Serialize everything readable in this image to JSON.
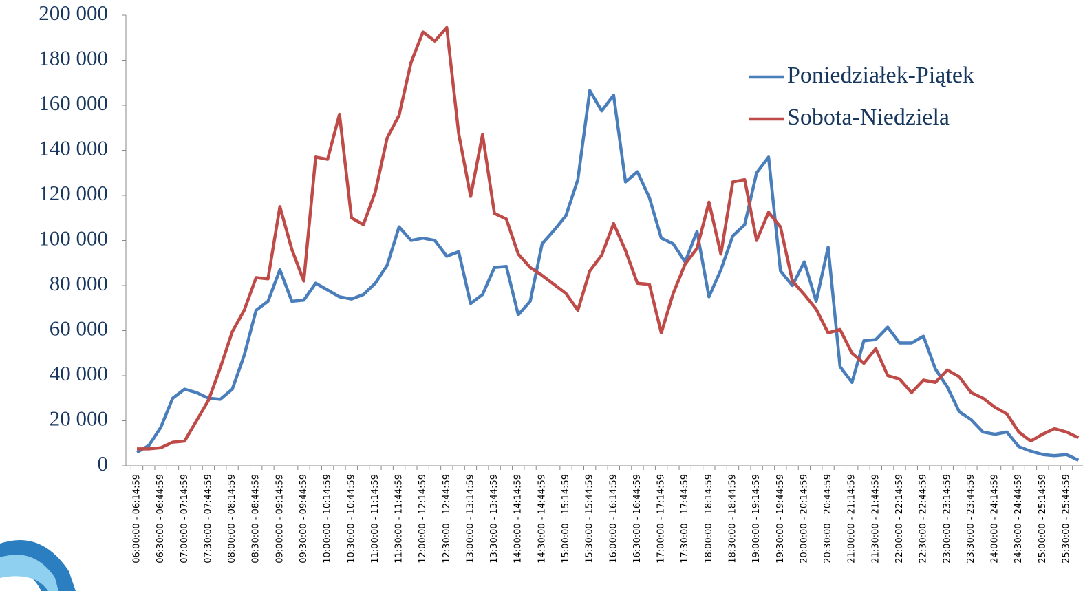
{
  "chart_data": {
    "type": "line",
    "categories": [
      "06:00:00 - 06:14:59",
      null,
      "06:30:00 - 06:44:59",
      null,
      "07:00:00 - 07:14:59",
      null,
      "07:30:00 - 07:44:59",
      null,
      "08:00:00 - 08:14:59",
      null,
      "08:30:00 - 08:44:59",
      null,
      "09:00:00 - 09:14:59",
      null,
      "09:30:00 - 09:44:59",
      null,
      "10:00:00 - 10:14:59",
      null,
      "10:30:00 - 10:44:59",
      null,
      "11:00:00 - 11:14:59",
      null,
      "11:30:00 - 11:44:59",
      null,
      "12:00:00 - 12:14:59",
      null,
      "12:30:00 - 12:44:59",
      null,
      "13:00:00 - 13:14:59",
      null,
      "13:30:00 - 13:44:59",
      null,
      "14:00:00 - 14:14:59",
      null,
      "14:30:00 - 14:44:59",
      null,
      "15:00:00 - 15:14:59",
      null,
      "15:30:00 - 15:44:59",
      null,
      "16:00:00 - 16:14:59",
      null,
      "16:30:00 - 16:44:59",
      null,
      "17:00:00 - 17:14:59",
      null,
      "17:30:00 - 17:44:59",
      null,
      "18:00:00 - 18:14:59",
      null,
      "18:30:00 - 18:44:59",
      null,
      "19:00:00 - 19:14:59",
      null,
      "19:30:00 - 19:44:59",
      null,
      "20:00:00 - 20:14:59",
      null,
      "20:30:00 - 20:44:59",
      null,
      "21:00:00 - 21:14:59",
      null,
      "21:30:00 - 21:44:59",
      null,
      "22:00:00 - 22:14:59",
      null,
      "22:30:00 - 22:44:59",
      null,
      "23:00:00 - 23:14:59",
      null,
      "23:30:00 - 23:44:59",
      null,
      "24:00:00 - 24:14:59",
      null,
      "24:30:00 - 24:44:59",
      null,
      "25:00:00 - 25:14:59",
      null,
      "25:30:00 - 25:44:59",
      null
    ],
    "series": [
      {
        "name": "Poniedziałek-Piątek",
        "color": "#4a7ebb",
        "values": [
          6000,
          9000,
          17000,
          30000,
          34000,
          32500,
          30000,
          29500,
          34000,
          49000,
          69000,
          73000,
          87000,
          73000,
          73500,
          81000,
          78000,
          75000,
          74000,
          76000,
          81000,
          89000,
          106000,
          100000,
          101000,
          100000,
          93000,
          95000,
          72000,
          76000,
          88000,
          88500,
          67000,
          73000,
          98500,
          104500,
          111000,
          127000,
          166500,
          157500,
          164500,
          126000,
          130500,
          119000,
          101000,
          98500,
          90500,
          104000,
          75000,
          87000,
          102000,
          107000,
          130000,
          137000,
          86500,
          80000,
          90500,
          73000,
          97000,
          44000,
          37000,
          55500,
          56000,
          61500,
          54500,
          54500,
          57500,
          43000,
          35000,
          24000,
          20500,
          15000,
          14000,
          15000,
          8500,
          6500,
          5000,
          4500,
          5000,
          2500
        ]
      },
      {
        "name": "Sobota-Niedziela",
        "color": "#be4b48",
        "values": [
          7500,
          7500,
          8000,
          10500,
          11000,
          20000,
          29000,
          43500,
          59500,
          69000,
          83500,
          83000,
          115000,
          96000,
          82000,
          137000,
          136000,
          156000,
          110000,
          107000,
          121500,
          145500,
          155500,
          179000,
          192500,
          188500,
          194500,
          147500,
          119500,
          147000,
          112000,
          109500,
          94000,
          88000,
          84500,
          80500,
          76500,
          69000,
          86500,
          93500,
          107500,
          95500,
          81000,
          80500,
          59000,
          76500,
          89500,
          96500,
          117000,
          94000,
          126000,
          127000,
          100000,
          112500,
          106000,
          82000,
          76000,
          69500,
          59000,
          60500,
          50000,
          45500,
          52000,
          40000,
          38500,
          32500,
          38000,
          37000,
          42500,
          39500,
          32500,
          30000,
          26000,
          23000,
          15000,
          11000,
          14000,
          16500,
          15000,
          12500
        ]
      }
    ],
    "ylim": [
      0,
      200000
    ],
    "yticks": [
      0,
      {
        "value": 20000,
        "label": "20 000"
      },
      {
        "value": 40000,
        "label": "40 000"
      },
      {
        "value": 60000,
        "label": "60 000"
      },
      {
        "value": 80000,
        "label": "80 000"
      },
      {
        "value": 100000,
        "label": "100 000"
      },
      {
        "value": 120000,
        "label": "120 000"
      },
      {
        "value": 140000,
        "label": "140 000"
      },
      {
        "value": 160000,
        "label": "160 000"
      },
      {
        "value": 180000,
        "label": "180 000"
      },
      {
        "value": 200000,
        "label": "200 000"
      }
    ],
    "grid": false,
    "legend": "upper-right"
  }
}
